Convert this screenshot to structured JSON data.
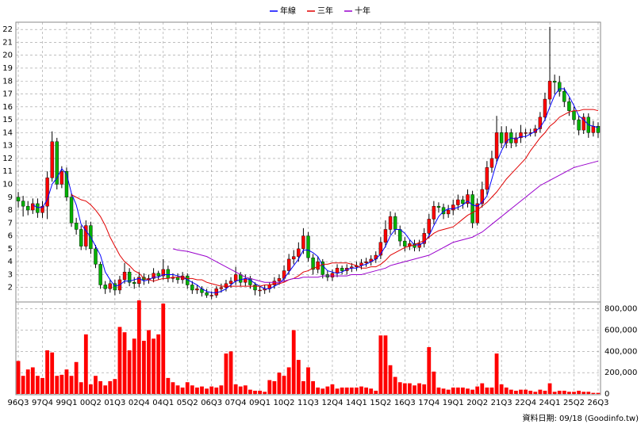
{
  "chart_data": [
    {
      "type": "candlestick",
      "categories": [
        "96Q3",
        null,
        null,
        null,
        null,
        "97Q4",
        null,
        null,
        null,
        null,
        "99Q1",
        null,
        null,
        null,
        null,
        "00Q2",
        null,
        null,
        null,
        null,
        "01Q3",
        null,
        null,
        null,
        null,
        "02Q4",
        null,
        null,
        null,
        null,
        "04Q1",
        null,
        null,
        null,
        null,
        "05Q2",
        null,
        null,
        null,
        null,
        "06Q3",
        null,
        null,
        null,
        null,
        "07Q4",
        null,
        null,
        null,
        null,
        "09Q1",
        null,
        null,
        null,
        null,
        "10Q2",
        null,
        null,
        null,
        null,
        "11Q3",
        null,
        null,
        null,
        null,
        "12Q4",
        null,
        null,
        null,
        null,
        "14Q1",
        null,
        null,
        null,
        null,
        "15Q2",
        null,
        null,
        null,
        null,
        "16Q3",
        null,
        null,
        null,
        null,
        "17Q4",
        null,
        null,
        null,
        null,
        "19Q1",
        null,
        null,
        null,
        null,
        "20Q2",
        null,
        null,
        null,
        null,
        "21Q3",
        null,
        null,
        null,
        null,
        "22Q4",
        null,
        null,
        null,
        null,
        "24Q1",
        null,
        null,
        null,
        null,
        "25Q2",
        null,
        null,
        null,
        null,
        "26Q3"
      ],
      "open": [
        9.0,
        8.7,
        8.3,
        8.0,
        8.5,
        7.8,
        8.3,
        10.5,
        13.3,
        10.0,
        11.0,
        9.0,
        7.0,
        6.5,
        5.2,
        6.8,
        5.0,
        3.8,
        2.2,
        1.9,
        2.3,
        1.8,
        2.6,
        3.2,
        2.4,
        2.3,
        2.8,
        2.6,
        2.7,
        3.1,
        2.9,
        3.4,
        2.7,
        2.8,
        2.6,
        2.9,
        2.2,
        1.8,
        1.9,
        1.6,
        1.4,
        1.4,
        1.9,
        2.0,
        2.3,
        2.5,
        3.0,
        2.4,
        2.7,
        2.2,
        1.8,
        1.8,
        1.9,
        2.2,
        2.5,
        2.7,
        3.3,
        4.2,
        4.4,
        5.0,
        6.0,
        4.3,
        3.4,
        4.0,
        3.0,
        2.8,
        3.1,
        3.5,
        3.3,
        3.5,
        3.6,
        3.7,
        3.9,
        4.0,
        4.2,
        4.5,
        5.5,
        6.5,
        7.5,
        6.5,
        5.6,
        5.2,
        5.4,
        5.1,
        5.4,
        6.2,
        7.3,
        8.3,
        8.2,
        7.7,
        8.0,
        8.4,
        8.8,
        8.5,
        9.2,
        7.0,
        8.5,
        9.6,
        11.3,
        12.0,
        14.0,
        13.2,
        14.0,
        13.2,
        13.6,
        14.0,
        14.0,
        14.0,
        14.3,
        15.2,
        16.6,
        18.0,
        17.9,
        17.2,
        16.4,
        15.7,
        15.0,
        14.2,
        15.2,
        14.0,
        14.5
      ],
      "high": [
        9.4,
        9.1,
        8.7,
        8.9,
        8.9,
        8.7,
        11.0,
        14.1,
        13.6,
        11.4,
        11.3,
        9.3,
        7.4,
        6.8,
        7.2,
        7.1,
        5.3,
        4.0,
        2.5,
        2.6,
        2.6,
        2.9,
        3.9,
        3.5,
        2.8,
        3.2,
        3.1,
        3.0,
        3.5,
        3.3,
        4.2,
        3.7,
        3.1,
        3.1,
        3.2,
        3.1,
        2.5,
        2.2,
        2.1,
        1.9,
        1.7,
        2.1,
        2.3,
        2.6,
        2.8,
        3.6,
        3.2,
        3.0,
        2.9,
        2.4,
        2.1,
        2.2,
        2.4,
        2.8,
        3.0,
        3.7,
        4.6,
        4.9,
        5.5,
        6.6,
        6.3,
        4.6,
        4.4,
        4.2,
        3.3,
        3.4,
        3.8,
        3.7,
        3.8,
        3.9,
        4.0,
        4.2,
        4.3,
        4.5,
        4.8,
        5.9,
        7.2,
        7.9,
        7.8,
        6.8,
        5.9,
        5.7,
        5.7,
        5.7,
        6.6,
        7.7,
        8.7,
        8.6,
        8.5,
        8.4,
        8.8,
        9.2,
        9.1,
        9.6,
        9.5,
        8.9,
        10.2,
        11.8,
        12.6,
        15.3,
        14.5,
        14.5,
        14.3,
        14.0,
        14.6,
        14.3,
        14.3,
        14.6,
        15.6,
        17.1,
        22.2,
        18.5,
        18.4,
        17.5,
        16.7,
        16.0,
        15.3,
        15.5,
        15.5,
        14.9,
        14.8
      ],
      "low": [
        8.2,
        7.5,
        7.6,
        7.7,
        7.4,
        7.4,
        7.3,
        10.2,
        9.6,
        9.7,
        8.7,
        6.7,
        6.1,
        4.9,
        4.9,
        4.6,
        3.5,
        1.9,
        1.5,
        1.6,
        1.4,
        1.5,
        2.3,
        2.1,
        1.9,
        2.0,
        2.2,
        2.3,
        2.4,
        2.6,
        2.6,
        2.4,
        2.4,
        2.3,
        2.3,
        1.9,
        1.5,
        1.5,
        1.3,
        1.2,
        1.1,
        1.2,
        1.6,
        1.7,
        2.0,
        2.2,
        2.1,
        2.1,
        1.9,
        1.4,
        1.3,
        1.5,
        1.6,
        1.9,
        2.2,
        2.4,
        3.0,
        3.8,
        4.0,
        4.6,
        4.0,
        3.0,
        3.1,
        2.7,
        2.5,
        2.5,
        2.8,
        3.0,
        3.0,
        3.2,
        3.3,
        3.4,
        3.6,
        3.7,
        3.9,
        4.2,
        5.1,
        6.1,
        6.1,
        5.2,
        4.8,
        4.9,
        4.8,
        4.8,
        5.1,
        5.8,
        6.9,
        7.8,
        7.3,
        7.4,
        7.6,
        8.0,
        8.1,
        8.2,
        6.6,
        6.8,
        8.2,
        9.2,
        10.9,
        11.6,
        12.8,
        12.8,
        12.8,
        12.9,
        13.2,
        13.6,
        13.7,
        13.7,
        14.0,
        14.9,
        16.2,
        17.0,
        16.8,
        16.0,
        15.3,
        14.6,
        13.8,
        13.9,
        13.6,
        13.7,
        13.6
      ],
      "close": [
        8.7,
        8.3,
        8.0,
        8.5,
        7.8,
        8.3,
        10.5,
        13.3,
        10.0,
        11.0,
        9.0,
        7.0,
        6.5,
        5.2,
        6.8,
        5.0,
        3.8,
        2.2,
        1.9,
        2.3,
        1.8,
        2.6,
        3.2,
        2.4,
        2.3,
        2.8,
        2.6,
        2.7,
        3.1,
        2.9,
        3.4,
        2.7,
        2.8,
        2.6,
        2.9,
        2.2,
        1.8,
        1.9,
        1.6,
        1.4,
        1.4,
        1.9,
        2.0,
        2.3,
        2.5,
        3.0,
        2.4,
        2.7,
        2.2,
        1.8,
        1.8,
        1.9,
        2.2,
        2.5,
        2.7,
        3.3,
        4.2,
        4.4,
        5.0,
        6.0,
        4.3,
        3.4,
        4.0,
        3.0,
        2.8,
        3.1,
        3.5,
        3.3,
        3.5,
        3.6,
        3.7,
        3.9,
        4.0,
        4.2,
        4.5,
        5.5,
        6.5,
        7.5,
        6.5,
        5.6,
        5.2,
        5.4,
        5.1,
        5.4,
        6.2,
        7.3,
        8.3,
        8.2,
        7.7,
        8.0,
        8.4,
        8.8,
        8.5,
        9.2,
        7.0,
        8.5,
        9.6,
        11.3,
        12.0,
        14.0,
        13.2,
        14.0,
        13.2,
        13.6,
        14.0,
        14.0,
        14.0,
        14.3,
        15.2,
        16.6,
        18.0,
        17.9,
        17.2,
        16.4,
        15.7,
        15.0,
        14.2,
        15.2,
        14.0,
        14.5,
        14.0
      ],
      "up_color": "#ff0000",
      "down_color": "#00b000",
      "wick_color": "#000000",
      "series": [
        {
          "name": "年線",
          "color": "#0000ff",
          "values": [
            null,
            null,
            null,
            8.4,
            8.2,
            8.2,
            8.8,
            10.0,
            10.5,
            11.2,
            10.8,
            9.3,
            8.4,
            6.9,
            6.4,
            5.9,
            5.2,
            4.5,
            3.2,
            2.6,
            2.1,
            2.2,
            2.5,
            2.5,
            2.6,
            2.7,
            2.5,
            2.6,
            2.8,
            2.8,
            3.0,
            3.0,
            3.0,
            2.9,
            2.8,
            2.6,
            2.4,
            2.2,
            1.9,
            1.7,
            1.6,
            1.6,
            1.7,
            1.9,
            2.2,
            2.5,
            2.6,
            2.7,
            2.6,
            2.3,
            2.1,
            1.9,
            1.9,
            2.1,
            2.3,
            2.7,
            3.2,
            3.7,
            4.2,
            4.9,
            4.9,
            4.7,
            4.4,
            3.7,
            3.3,
            3.2,
            3.1,
            3.2,
            3.4,
            3.5,
            3.5,
            3.7,
            3.8,
            4.0,
            4.2,
            4.6,
            5.2,
            6.0,
            6.5,
            6.5,
            6.2,
            5.7,
            5.3,
            5.3,
            5.5,
            6.0,
            6.8,
            7.5,
            7.9,
            8.1,
            8.1,
            8.2,
            8.4,
            8.7,
            8.4,
            8.3,
            8.6,
            9.1,
            10.4,
            11.7,
            12.6,
            13.3,
            13.6,
            13.5,
            13.7,
            13.7,
            13.9,
            14.1,
            14.4,
            15.0,
            16.0,
            16.9,
            17.4,
            17.4,
            16.8,
            16.1,
            15.3,
            15.0,
            14.6,
            14.5,
            14.4
          ]
        },
        {
          "name": "三年",
          "color": "#e00000",
          "values": [
            null,
            null,
            null,
            null,
            null,
            null,
            null,
            null,
            null,
            null,
            null,
            9.2,
            9.0,
            8.8,
            8.7,
            8.4,
            8.0,
            7.5,
            6.8,
            5.9,
            5.2,
            4.5,
            4.0,
            3.7,
            3.3,
            3.1,
            2.7,
            2.6,
            2.5,
            2.6,
            2.7,
            2.7,
            2.8,
            2.8,
            2.8,
            2.7,
            2.7,
            2.6,
            2.6,
            2.4,
            2.3,
            2.2,
            2.1,
            2.1,
            2.1,
            2.1,
            2.1,
            2.1,
            2.1,
            2.1,
            2.1,
            2.2,
            2.2,
            2.3,
            2.3,
            2.4,
            2.6,
            2.7,
            2.9,
            3.2,
            3.3,
            3.5,
            3.6,
            3.8,
            3.8,
            3.9,
            3.9,
            3.9,
            3.9,
            3.8,
            3.7,
            3.5,
            3.5,
            3.6,
            3.6,
            3.8,
            4.1,
            4.5,
            4.7,
            4.9,
            5.1,
            5.2,
            5.3,
            5.5,
            5.6,
            5.9,
            6.2,
            6.4,
            6.5,
            6.6,
            6.7,
            7.0,
            7.3,
            7.6,
            7.8,
            8.0,
            8.3,
            8.6,
            9.0,
            9.4,
            9.9,
            10.4,
            10.8,
            11.2,
            11.6,
            12.0,
            12.6,
            13.1,
            13.6,
            14.0,
            14.5,
            14.8,
            15.2,
            15.4,
            15.6,
            15.7,
            15.7,
            15.8,
            15.8,
            15.8,
            15.7
          ]
        },
        {
          "name": "十年",
          "color": "#9900cc",
          "values": [
            null,
            null,
            null,
            null,
            null,
            null,
            null,
            null,
            null,
            null,
            null,
            null,
            null,
            null,
            null,
            null,
            null,
            null,
            null,
            null,
            null,
            null,
            null,
            null,
            null,
            null,
            null,
            null,
            null,
            null,
            null,
            null,
            5.0,
            4.9,
            4.85,
            4.8,
            4.7,
            4.6,
            4.5,
            4.4,
            4.2,
            4.0,
            3.8,
            3.6,
            3.4,
            3.2,
            3.0,
            2.8,
            2.7,
            2.6,
            2.5,
            2.4,
            2.4,
            2.4,
            2.4,
            2.5,
            2.6,
            2.7,
            2.7,
            2.8,
            2.8,
            2.8,
            2.8,
            2.9,
            2.9,
            2.9,
            2.9,
            2.9,
            2.9,
            3.0,
            3.0,
            3.0,
            3.1,
            3.2,
            3.3,
            3.4,
            3.5,
            3.7,
            3.8,
            3.9,
            4.0,
            4.1,
            4.2,
            4.3,
            4.4,
            4.5,
            4.7,
            4.9,
            5.1,
            5.3,
            5.5,
            5.6,
            5.7,
            5.8,
            5.9,
            6.1,
            6.3,
            6.6,
            6.9,
            7.2,
            7.5,
            7.8,
            8.1,
            8.4,
            8.7,
            9.0,
            9.3,
            9.6,
            9.9,
            10.1,
            10.3,
            10.5,
            10.7,
            10.9,
            11.1,
            11.3,
            11.4,
            11.5,
            11.6,
            11.7,
            11.8
          ]
        }
      ],
      "ylim": [
        1,
        22.5
      ],
      "yticks": [
        2,
        3,
        4,
        5,
        6,
        7,
        8,
        9,
        10,
        11,
        12,
        13,
        14,
        15,
        16,
        17,
        18,
        19,
        20,
        21,
        22
      ],
      "grid": true
    },
    {
      "type": "bar",
      "values": [
        310000,
        170000,
        230000,
        250000,
        170000,
        150000,
        410000,
        390000,
        170000,
        180000,
        230000,
        170000,
        300000,
        110000,
        560000,
        90000,
        170000,
        120000,
        80000,
        120000,
        140000,
        630000,
        580000,
        410000,
        520000,
        880000,
        500000,
        600000,
        520000,
        560000,
        850000,
        150000,
        110000,
        80000,
        60000,
        110000,
        80000,
        60000,
        70000,
        50000,
        70000,
        60000,
        80000,
        380000,
        400000,
        90000,
        70000,
        80000,
        40000,
        30000,
        30000,
        20000,
        130000,
        120000,
        200000,
        170000,
        250000,
        600000,
        320000,
        120000,
        250000,
        120000,
        60000,
        50000,
        70000,
        90000,
        50000,
        60000,
        60000,
        60000,
        60000,
        70000,
        60000,
        50000,
        30000,
        550000,
        550000,
        270000,
        160000,
        110000,
        100000,
        100000,
        80000,
        100000,
        90000,
        440000,
        210000,
        60000,
        50000,
        40000,
        60000,
        60000,
        60000,
        50000,
        40000,
        70000,
        100000,
        60000,
        60000,
        380000,
        90000,
        60000,
        40000,
        30000,
        40000,
        40000,
        30000,
        20000,
        40000,
        30000,
        100000,
        20000,
        30000,
        30000,
        20000,
        20000,
        30000,
        20000,
        20000,
        10000,
        10000
      ],
      "color": "#ff0000",
      "ylim": [
        0,
        850000
      ],
      "yticks": [
        0,
        {
          "value": 200000,
          "label": "200,000"
        },
        {
          "value": 400000,
          "label": "400,000"
        },
        {
          "value": 600000,
          "label": "600,000"
        },
        {
          "value": 800000,
          "label": "800,000"
        }
      ],
      "grid": true
    }
  ],
  "footer": "資料日期: 09/18 (Goodinfo.tw)"
}
